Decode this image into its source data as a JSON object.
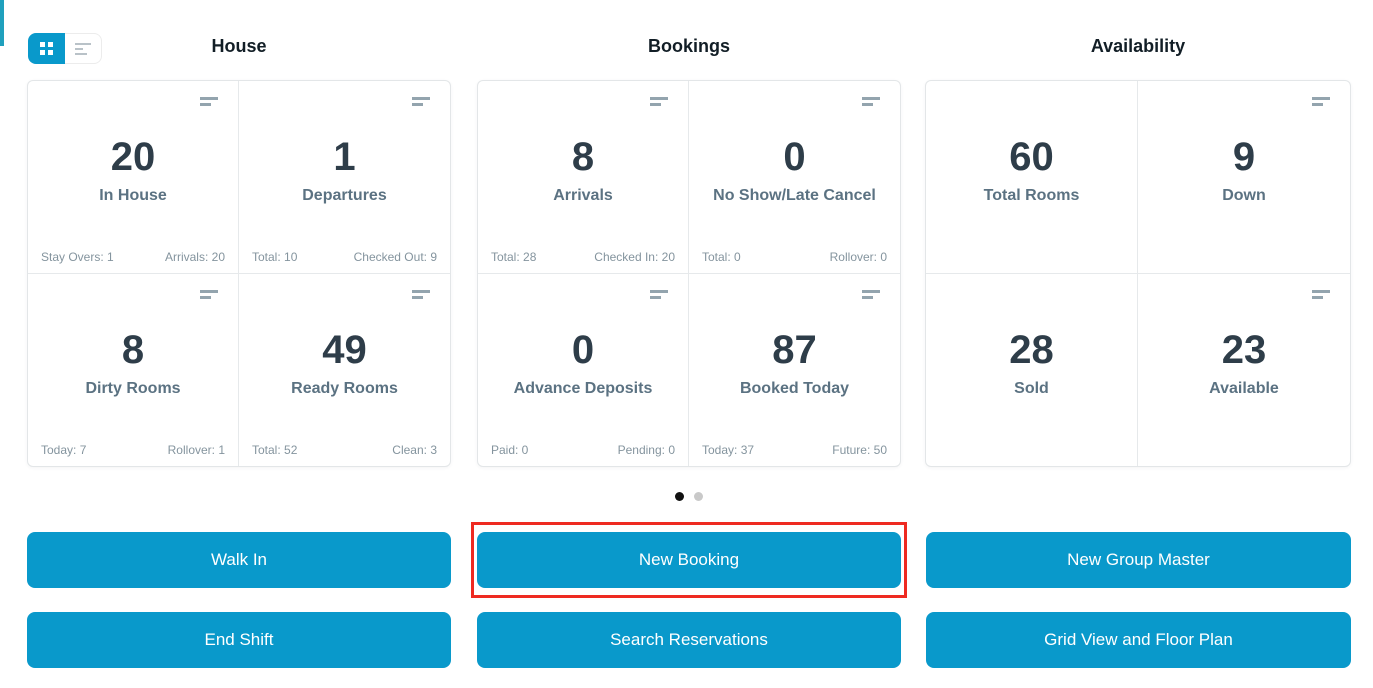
{
  "colors": {
    "accent_blue": "#0999cb",
    "highlight_red": "#ee2a21",
    "left_bar_teal": "#20a0bd",
    "dot_active": "#111111",
    "dot_inactive": "#c9c9c9"
  },
  "icons": {
    "view_grid": "grid-view-icon",
    "view_list": "list-view-icon",
    "card_menu": "card-menu-icon"
  },
  "sections": [
    {
      "title": "House",
      "cards": [
        {
          "value": "20",
          "label": "In House",
          "footer_left": "Stay Overs: 1",
          "footer_right": "Arrivals: 20"
        },
        {
          "value": "1",
          "label": "Departures",
          "footer_left": "Total: 10",
          "footer_right": "Checked Out: 9"
        },
        {
          "value": "8",
          "label": "Dirty Rooms",
          "footer_left": "Today: 7",
          "footer_right": "Rollover: 1"
        },
        {
          "value": "49",
          "label": "Ready Rooms",
          "footer_left": "Total: 52",
          "footer_right": "Clean: 3"
        }
      ]
    },
    {
      "title": "Bookings",
      "cards": [
        {
          "value": "8",
          "label": "Arrivals",
          "footer_left": "Total: 28",
          "footer_right": "Checked In: 20"
        },
        {
          "value": "0",
          "label": "No Show/Late Cancel",
          "footer_left": "Total: 0",
          "footer_right": "Rollover: 0"
        },
        {
          "value": "0",
          "label": "Advance Deposits",
          "footer_left": "Paid: 0",
          "footer_right": "Pending: 0"
        },
        {
          "value": "87",
          "label": "Booked Today",
          "footer_left": "Today: 37",
          "footer_right": "Future: 50"
        }
      ]
    },
    {
      "title": "Availability",
      "cards": [
        {
          "value": "60",
          "label": "Total Rooms"
        },
        {
          "value": "9",
          "label": "Down"
        },
        {
          "value": "28",
          "label": "Sold"
        },
        {
          "value": "23",
          "label": "Available"
        }
      ]
    }
  ],
  "carousel": {
    "page_count": 2,
    "active_page": 1
  },
  "actions": [
    {
      "label": "Walk In"
    },
    {
      "label": "New Booking",
      "highlighted": true
    },
    {
      "label": "New Group Master"
    },
    {
      "label": "End Shift"
    },
    {
      "label": "Search Reservations"
    },
    {
      "label": "Grid View and Floor Plan"
    }
  ]
}
